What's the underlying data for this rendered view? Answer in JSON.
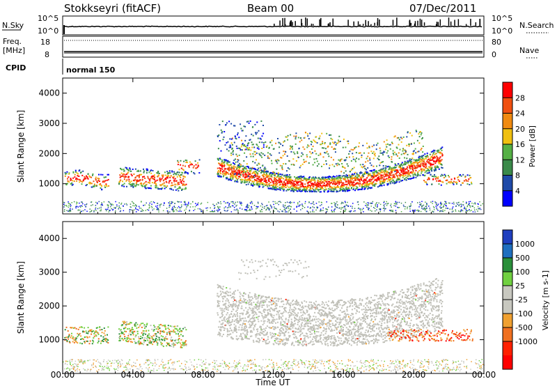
{
  "header": {
    "station": "Stokkseyri (fitACF)",
    "beam": "Beam 00",
    "date": "07/Dec/2011"
  },
  "noise_panel": {
    "left_label": "N.Sky",
    "right_label": "N.Search",
    "left_ticks": [
      "10^5",
      "10^0"
    ],
    "right_ticks": [
      "10^5",
      "10^0"
    ]
  },
  "freq_panel": {
    "left_label_1": "Freq.",
    "left_label_2": "[MHz]",
    "right_label": "Nave",
    "left_ticks": [
      "18",
      "8"
    ],
    "right_ticks": [
      "80",
      "0"
    ]
  },
  "cpid_panel": {
    "label": "CPID",
    "mode_text": "normal 150"
  },
  "colors": {
    "power_scale": [
      "#0000ff",
      "#1f4aa8",
      "#3a8a4a",
      "#55b045",
      "#f0c010",
      "#f08a10",
      "#f05010",
      "#ff0000"
    ],
    "velocity_scale": [
      "#1f3fbf",
      "#1f6fbf",
      "#2a8f3a",
      "#70d040",
      "#c8c8c0",
      "#c8c8c0",
      "#f0a030",
      "#f07020",
      "#ff2000",
      "#ff0000"
    ],
    "ground_scatter": "#c0c0b8"
  },
  "chart_data": [
    {
      "type": "heatmap",
      "name": "power",
      "ylabel": "Slant Range [km]",
      "xlabel": "",
      "ylim": [
        0,
        4500
      ],
      "y_ticks": [
        "1000",
        "2000",
        "3000",
        "4000"
      ],
      "x_ticks": [
        "00:00",
        "04:00",
        "08:00",
        "12:00",
        "16:00",
        "20:00",
        "00:00"
      ],
      "colorbar_label": "Power [dB]",
      "colorbar_ticks": [
        "4",
        "8",
        "12",
        "16",
        "20",
        "24",
        "28"
      ]
    },
    {
      "type": "heatmap",
      "name": "velocity",
      "ylabel": "Slant Range [km]",
      "xlabel": "Time UT",
      "ylim": [
        0,
        4500
      ],
      "y_ticks": [
        "1000",
        "2000",
        "3000",
        "4000"
      ],
      "x_ticks": [
        "00:00",
        "04:00",
        "08:00",
        "12:00",
        "16:00",
        "20:00",
        "00:00"
      ],
      "colorbar_label": "Velocity [m s-1]",
      "colorbar_ticks": [
        "1000",
        "500",
        "100",
        "25",
        "-25",
        "-100",
        "-500",
        "-1000"
      ]
    }
  ]
}
